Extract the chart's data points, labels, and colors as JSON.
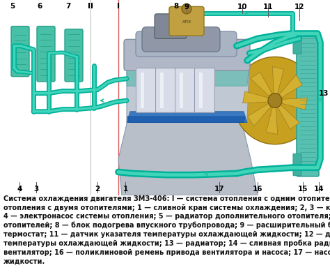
{
  "bg_color": "#ffffff",
  "caption_text": "Система охлаждения двигателя ЗМЗ-406: I — система отопления с одним отопителем; II — система\nотопления с двумя отопителями; 1 — сливной кран системы охлаждения; 2, 3 — краны отопителей;\n4 — электронасос системы отопления; 5 — радиатор дополнительного отопителя; 6, 7 — радиаторы\nотопителей; 8 — блок подогрева впускного трубопровода; 9 — расширительный бачок; 10 —\nтермостат; 11 — датчик указателя температуры охлаждающей жидкости; 12 — датчик аварийной\nтемпературы охлаждающей жидкости; 13 — радиатор; 14 — сливная пробка радиатора; 15 —\nвентилятор; 16 — поликлиновой ремень привода вентилятора и насоса; 17 — насос охлаждающей\nжидкости.",
  "caption_fontsize": 7.0,
  "pipe_color_outer": "#00b09a",
  "pipe_color_inner": "#40d4b8",
  "engine_body_color": "#c0c8d0",
  "engine_lower_color": "#a8b0bc",
  "engine_blue_color": "#4488cc",
  "cylinder_color": "#d8dce5",
  "fan_color": "#c8a840",
  "radiator_color": "#60c8b8",
  "expansion_tank_color": "#b89848",
  "label_fontsize": 7.5,
  "label_color": "#000000",
  "line_color": "#555555"
}
